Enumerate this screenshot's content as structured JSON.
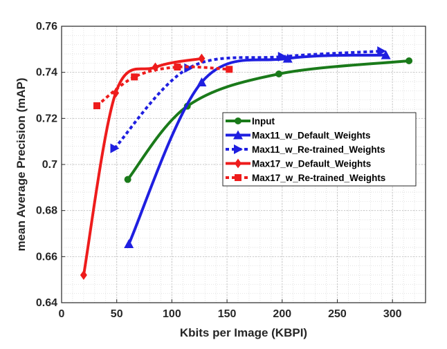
{
  "chart_data": {
    "type": "line",
    "title": "",
    "xlabel": "Kbits per Image (KBPI)",
    "ylabel": "mean Average Precision (mAP)",
    "xlim": [
      0,
      330
    ],
    "ylim": [
      0.64,
      0.76
    ],
    "x_ticks": [
      0,
      50,
      100,
      150,
      200,
      250,
      300
    ],
    "y_ticks": [
      0.64,
      0.66,
      0.68,
      0.7,
      0.72,
      0.74,
      0.76
    ],
    "x_tick_labels": [
      "0",
      "50",
      "100",
      "150",
      "200",
      "250",
      "300"
    ],
    "y_tick_labels": [
      "0.64",
      "0.66",
      "0.68",
      "0.7",
      "0.72",
      "0.74",
      "0.76"
    ],
    "grid": true,
    "minor_grid": true,
    "legend_position": "center-right",
    "series": [
      {
        "name": "Input",
        "color": "#1a7a1a",
        "marker": "circle",
        "dashed": false,
        "points": [
          [
            60,
            0.6935
          ],
          [
            114,
            0.7253
          ],
          [
            197,
            0.7393
          ],
          [
            315,
            0.745
          ]
        ]
      },
      {
        "name": "Max11_w_Default_Weights",
        "color": "#1f1fe0",
        "marker": "triangle-up",
        "dashed": false,
        "points": [
          [
            61,
            0.6655
          ],
          [
            127,
            0.7357
          ],
          [
            205,
            0.746
          ],
          [
            294,
            0.7475
          ]
        ]
      },
      {
        "name": "Max11_w_Re-trained_Weights",
        "color": "#1f1fe0",
        "marker": "triangle-right",
        "dashed": true,
        "points": [
          [
            48,
            0.707
          ],
          [
            115,
            0.7418
          ],
          [
            200,
            0.7468
          ],
          [
            290,
            0.7492
          ]
        ]
      },
      {
        "name": "Max17_w_Default_Weights",
        "color": "#ee1c1c",
        "marker": "diamond",
        "dashed": false,
        "points": [
          [
            20,
            0.652
          ],
          [
            49,
            0.731
          ],
          [
            85,
            0.7422
          ],
          [
            127,
            0.746
          ]
        ]
      },
      {
        "name": "Max17_w_Re-trained_Weights",
        "color": "#ee1c1c",
        "marker": "square",
        "dashed": true,
        "points": [
          [
            32,
            0.7255
          ],
          [
            66,
            0.738
          ],
          [
            105,
            0.7423
          ],
          [
            152,
            0.7413
          ]
        ]
      }
    ]
  }
}
